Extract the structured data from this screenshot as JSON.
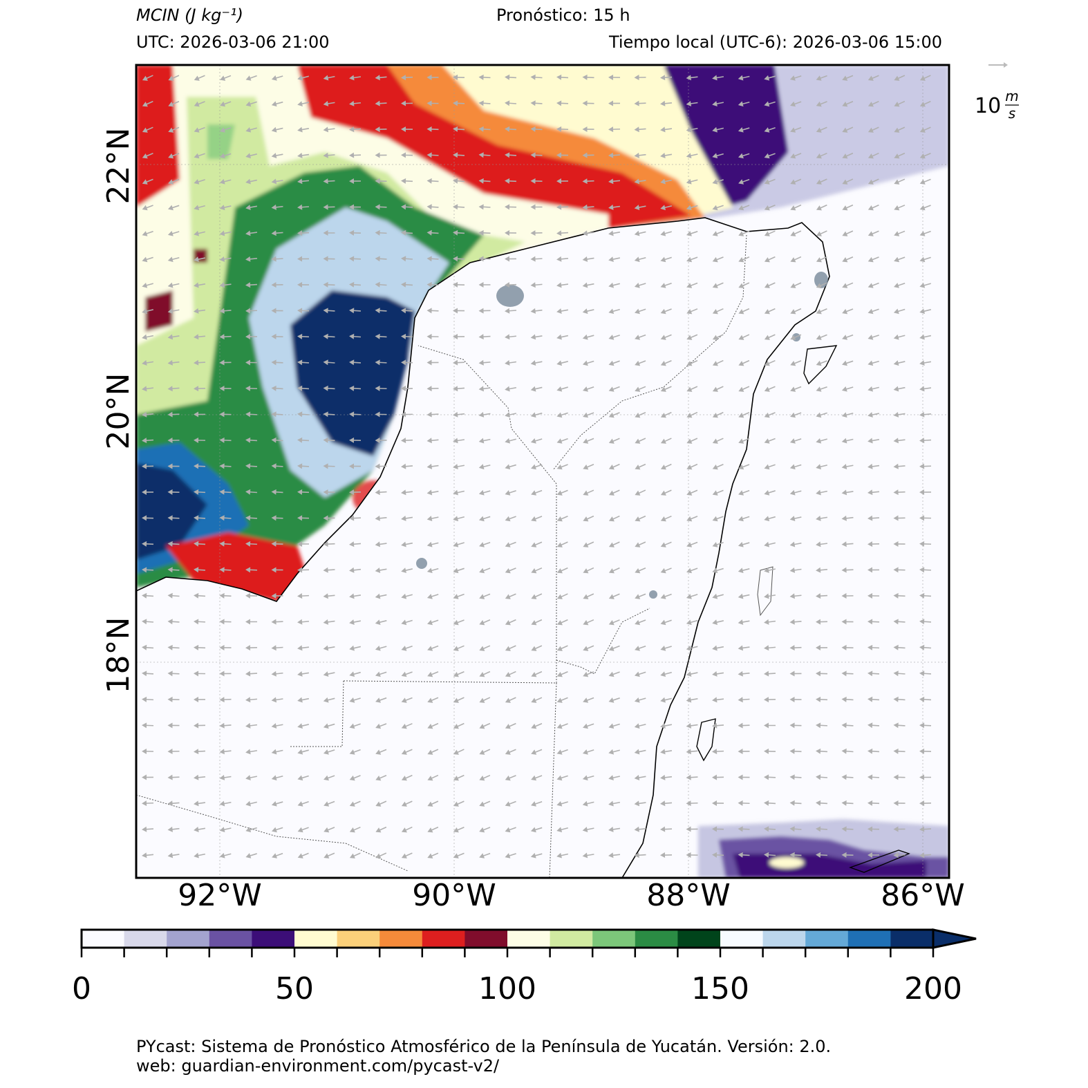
{
  "header": {
    "variable_label": "MCIN (J kg⁻¹)",
    "lead_label": "Pronóstico: 15 h",
    "utc_label": "UTC:  2026-03-06 21:00",
    "local_label": "Tiempo local (UTC-6): 2026-03-06 15:00"
  },
  "map": {
    "lat_labels": [
      "22°N",
      "20°N",
      "18°N"
    ],
    "lon_labels": [
      "92°W",
      "90°W",
      "88°W",
      "86°W"
    ],
    "wind_reference": {
      "value": "10",
      "unit": "m/s"
    }
  },
  "colorbar": {
    "tick_labels": [
      "0",
      "50",
      "100",
      "150",
      "200"
    ],
    "min": 0,
    "max": 200,
    "step": 10,
    "extend": "max",
    "colors": [
      "#fbfbff",
      "#d8d8ea",
      "#a3a3cf",
      "#6a52a3",
      "#3c0e78",
      "#fffbd0",
      "#fbd07a",
      "#f58a3a",
      "#dd1f1f",
      "#800d2c",
      "#fdfde6",
      "#d1eaa1",
      "#7cc77a",
      "#2b8c44",
      "#00441b",
      "#f7fbff",
      "#bcd6ec",
      "#64a9d7",
      "#1f70b5",
      "#0a2e69"
    ]
  },
  "footer": {
    "line1": "PYcast: Sistema de Pronóstico Atmosférico de la Península de Yucatán. Versión: 2.0.",
    "line2": "web: guardian-environment.com/pycast-v2/"
  }
}
